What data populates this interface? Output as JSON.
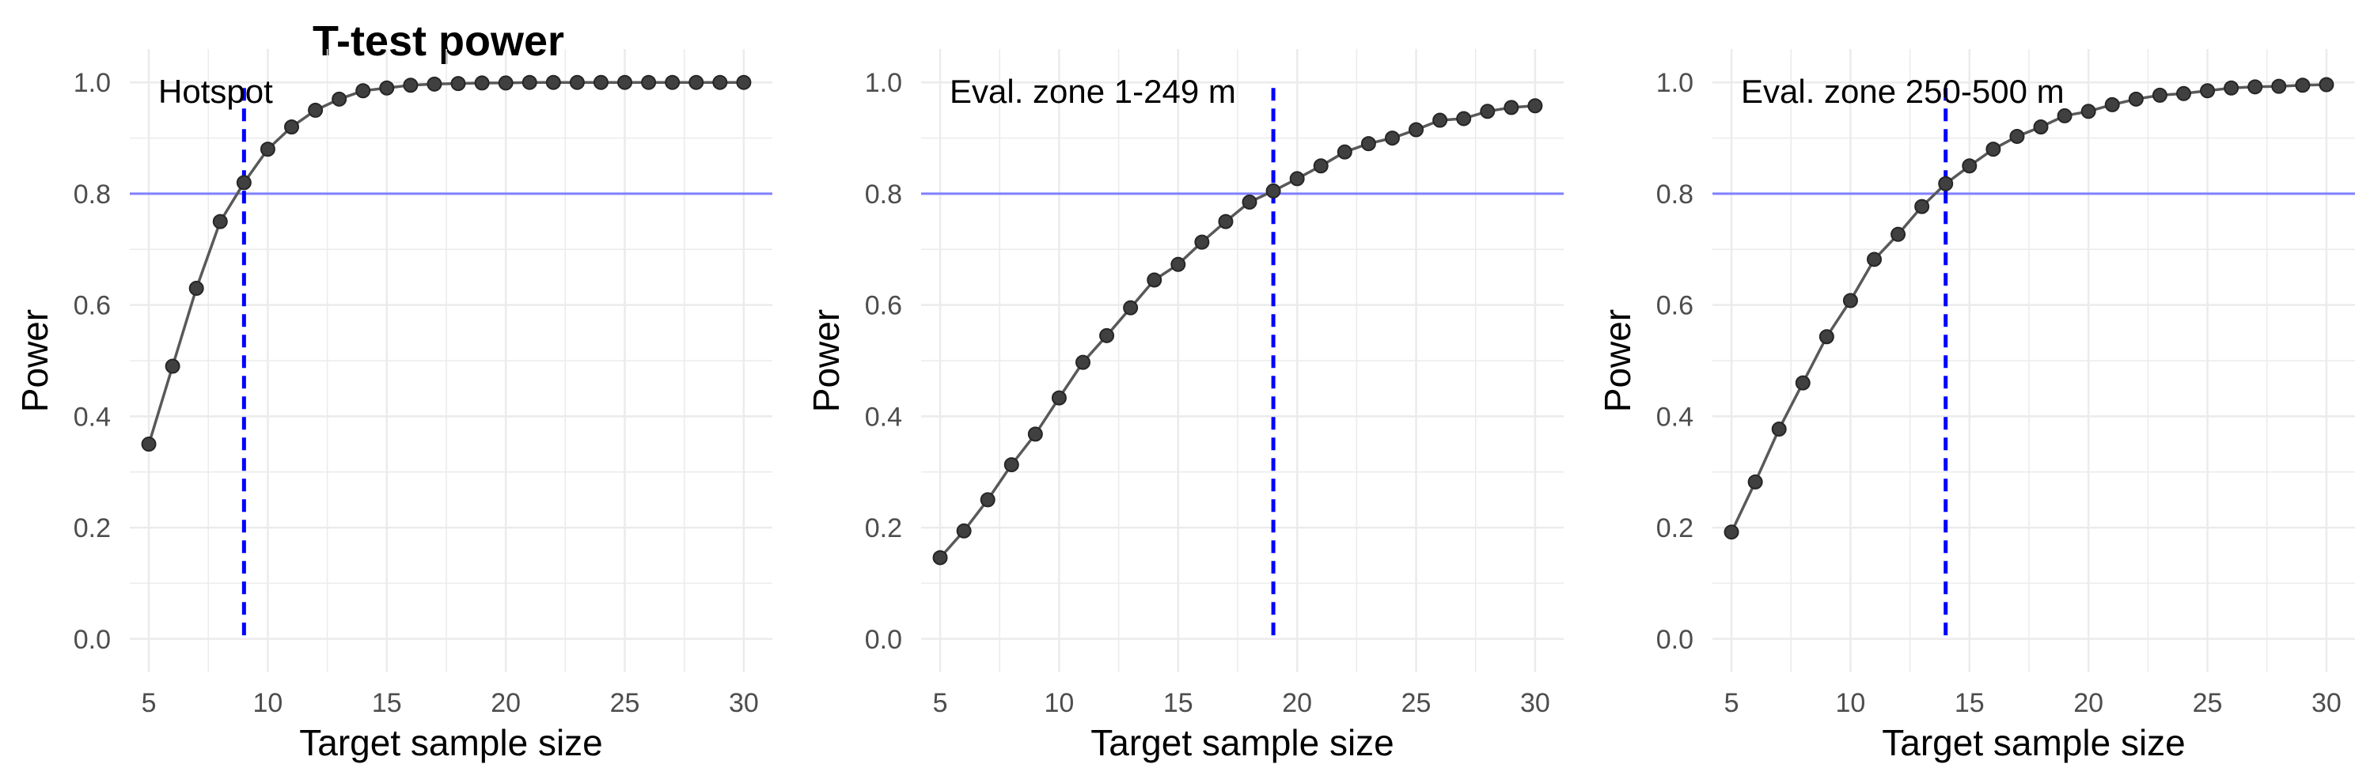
{
  "figure": {
    "title": "T-test power"
  },
  "chart_data": [
    {
      "type": "line",
      "panel_label": "Hotspot",
      "xlabel": "Target sample size",
      "ylabel": "Power",
      "xlim": [
        4.2,
        31.2
      ],
      "ylim": [
        -0.06,
        1.06
      ],
      "xticks": [
        5,
        10,
        15,
        20,
        25,
        30
      ],
      "yticks": [
        0.0,
        0.2,
        0.4,
        0.6,
        0.8,
        1.0
      ],
      "grid": true,
      "target_power": 0.8,
      "selected_n": 9,
      "x": [
        5,
        6,
        7,
        8,
        9,
        10,
        11,
        12,
        13,
        14,
        15,
        16,
        17,
        18,
        19,
        20,
        21,
        22,
        23,
        24,
        25,
        26,
        27,
        28,
        29,
        30
      ],
      "y": [
        0.35,
        0.49,
        0.63,
        0.75,
        0.82,
        0.88,
        0.92,
        0.95,
        0.97,
        0.985,
        0.99,
        0.995,
        0.997,
        0.998,
        0.999,
        0.999,
        1.0,
        1.0,
        1.0,
        1.0,
        1.0,
        1.0,
        1.0,
        1.0,
        1.0,
        1.0
      ]
    },
    {
      "type": "line",
      "panel_label": "Eval. zone 1-249 m",
      "xlabel": "Target sample size",
      "ylabel": "Power",
      "xlim": [
        4.2,
        31.2
      ],
      "ylim": [
        -0.06,
        1.06
      ],
      "xticks": [
        5,
        10,
        15,
        20,
        25,
        30
      ],
      "yticks": [
        0.0,
        0.2,
        0.4,
        0.6,
        0.8,
        1.0
      ],
      "grid": true,
      "target_power": 0.8,
      "selected_n": 19,
      "x": [
        5,
        6,
        7,
        8,
        9,
        10,
        11,
        12,
        13,
        14,
        15,
        16,
        17,
        18,
        19,
        20,
        21,
        22,
        23,
        24,
        25,
        26,
        27,
        28,
        29,
        30
      ],
      "y": [
        0.146,
        0.194,
        0.25,
        0.313,
        0.368,
        0.433,
        0.497,
        0.545,
        0.595,
        0.645,
        0.673,
        0.713,
        0.75,
        0.785,
        0.805,
        0.827,
        0.85,
        0.875,
        0.89,
        0.9,
        0.915,
        0.932,
        0.935,
        0.948,
        0.955,
        0.958
      ]
    },
    {
      "type": "line",
      "panel_label": "Eval. zone 250-500 m",
      "xlabel": "Target sample size",
      "ylabel": "Power",
      "xlim": [
        4.2,
        31.2
      ],
      "ylim": [
        -0.06,
        1.06
      ],
      "xticks": [
        5,
        10,
        15,
        20,
        25,
        30
      ],
      "yticks": [
        0.0,
        0.2,
        0.4,
        0.6,
        0.8,
        1.0
      ],
      "grid": true,
      "target_power": 0.8,
      "selected_n": 14,
      "x": [
        5,
        6,
        7,
        8,
        9,
        10,
        11,
        12,
        13,
        14,
        15,
        16,
        17,
        18,
        19,
        20,
        21,
        22,
        23,
        24,
        25,
        26,
        27,
        28,
        29,
        30
      ],
      "y": [
        0.192,
        0.282,
        0.377,
        0.46,
        0.543,
        0.608,
        0.682,
        0.727,
        0.777,
        0.818,
        0.85,
        0.88,
        0.903,
        0.92,
        0.94,
        0.948,
        0.96,
        0.97,
        0.977,
        0.98,
        0.985,
        0.99,
        0.992,
        0.993,
        0.995,
        0.996
      ]
    }
  ],
  "colors": {
    "series_line": "#595959",
    "point_fill": "#404040",
    "point_stroke": "#262626",
    "target_line": "#8080ff",
    "selected_line": "#0000ff",
    "grid": "#ebebeb",
    "tick_text": "#4d4d4d"
  }
}
